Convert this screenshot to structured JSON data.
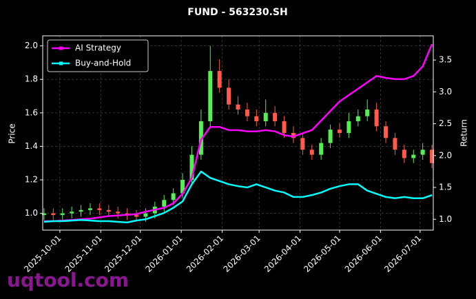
{
  "chart_data": {
    "type": "candlestick",
    "title": "FUND - 563230.SH",
    "ylabel": "Price",
    "y2label": "Return",
    "watermark": "uqtool.com",
    "x": [
      "2025-09-19",
      "2025-09-26",
      "2025-10-03",
      "2025-10-10",
      "2025-10-17",
      "2025-10-24",
      "2025-10-31",
      "2025-11-07",
      "2025-11-14",
      "2025-11-21",
      "2025-11-28",
      "2025-12-05",
      "2025-12-12",
      "2025-12-19",
      "2025-12-26",
      "2026-01-02",
      "2026-01-09",
      "2026-01-16",
      "2026-01-23",
      "2026-01-30",
      "2026-02-06",
      "2026-02-13",
      "2026-02-20",
      "2026-02-27",
      "2026-03-06",
      "2026-03-13",
      "2026-03-20",
      "2026-03-27",
      "2026-04-03",
      "2026-04-10",
      "2026-04-17",
      "2026-04-24",
      "2026-05-01",
      "2026-05-08",
      "2026-05-15",
      "2026-05-22",
      "2026-05-29",
      "2026-06-05",
      "2026-06-12",
      "2026-06-19",
      "2026-06-26",
      "2026-07-03",
      "2026-07-10"
    ],
    "ohlc": {
      "up_color": "#55ee55",
      "down_color": "#ff5a4a",
      "open": [
        0.99,
        1.0,
        0.99,
        1.0,
        1.01,
        1.02,
        1.03,
        1.02,
        1.01,
        1.0,
        0.99,
        0.98,
        1.0,
        1.04,
        1.08,
        1.12,
        1.2,
        1.35,
        1.55,
        1.85,
        1.75,
        1.65,
        1.62,
        1.58,
        1.55,
        1.6,
        1.55,
        1.48,
        1.45,
        1.38,
        1.35,
        1.42,
        1.5,
        1.48,
        1.55,
        1.58,
        1.62,
        1.52,
        1.45,
        1.38,
        1.33,
        1.35,
        1.38
      ],
      "high": [
        1.03,
        1.03,
        1.03,
        1.04,
        1.05,
        1.06,
        1.06,
        1.05,
        1.04,
        1.03,
        1.02,
        1.03,
        1.07,
        1.11,
        1.15,
        1.24,
        1.4,
        1.62,
        2.0,
        1.92,
        1.8,
        1.7,
        1.66,
        1.62,
        1.68,
        1.64,
        1.58,
        1.52,
        1.48,
        1.41,
        1.45,
        1.53,
        1.54,
        1.6,
        1.62,
        1.68,
        1.66,
        1.55,
        1.48,
        1.41,
        1.38,
        1.42,
        1.41
      ],
      "low": [
        0.96,
        0.96,
        0.96,
        0.97,
        0.98,
        0.99,
        0.99,
        0.98,
        0.97,
        0.96,
        0.95,
        0.95,
        0.97,
        1.01,
        1.05,
        1.09,
        1.17,
        1.32,
        1.52,
        1.72,
        1.62,
        1.59,
        1.55,
        1.52,
        1.52,
        1.52,
        1.45,
        1.42,
        1.35,
        1.32,
        1.32,
        1.39,
        1.45,
        1.45,
        1.52,
        1.55,
        1.49,
        1.42,
        1.35,
        1.3,
        1.3,
        1.32,
        1.27
      ],
      "close": [
        1.0,
        0.99,
        1.0,
        1.01,
        1.02,
        1.03,
        1.02,
        1.01,
        1.0,
        0.99,
        0.98,
        1.0,
        1.04,
        1.08,
        1.12,
        1.2,
        1.35,
        1.55,
        1.85,
        1.75,
        1.65,
        1.62,
        1.58,
        1.55,
        1.6,
        1.55,
        1.48,
        1.45,
        1.38,
        1.35,
        1.42,
        1.5,
        1.48,
        1.55,
        1.58,
        1.62,
        1.52,
        1.45,
        1.38,
        1.33,
        1.35,
        1.38,
        1.3
      ]
    },
    "series": [
      {
        "name": "AI Strategy",
        "color": "#ff00ff",
        "axis": "y2",
        "values": [
          0.97,
          0.97,
          0.98,
          0.99,
          1.0,
          1.01,
          1.03,
          1.05,
          1.06,
          1.07,
          1.08,
          1.12,
          1.15,
          1.18,
          1.25,
          1.4,
          1.65,
          2.25,
          2.45,
          2.45,
          2.4,
          2.4,
          2.38,
          2.38,
          2.4,
          2.38,
          2.32,
          2.3,
          2.35,
          2.4,
          2.55,
          2.7,
          2.85,
          2.95,
          3.05,
          3.15,
          3.25,
          3.22,
          3.2,
          3.2,
          3.25,
          3.4,
          3.75
        ]
      },
      {
        "name": "Buy-and-Hold",
        "color": "#00ffff",
        "axis": "y2",
        "values": [
          0.96,
          0.97,
          0.97,
          0.98,
          0.99,
          0.98,
          0.97,
          0.97,
          0.96,
          0.95,
          0.98,
          1.0,
          1.05,
          1.1,
          1.18,
          1.28,
          1.55,
          1.75,
          1.65,
          1.6,
          1.55,
          1.52,
          1.5,
          1.55,
          1.5,
          1.45,
          1.42,
          1.35,
          1.35,
          1.38,
          1.42,
          1.48,
          1.52,
          1.55,
          1.55,
          1.45,
          1.4,
          1.35,
          1.33,
          1.35,
          1.33,
          1.33,
          1.38
        ]
      }
    ],
    "xlim": [
      "2025-09-18",
      "2026-07-11"
    ],
    "xticks": [
      "2025-10-01",
      "2025-11-01",
      "2025-12-01",
      "2026-01-01",
      "2026-02-01",
      "2026-03-01",
      "2026-04-01",
      "2026-05-01",
      "2026-06-01",
      "2026-07-01"
    ],
    "ylim": [
      0.9,
      2.06
    ],
    "yticks": [
      {
        "value": 1.0,
        "label": "1.0"
      },
      1.2,
      1.4,
      1.6,
      1.8,
      {
        "value": 2.0,
        "label": "2.0"
      }
    ],
    "y2lim": [
      0.83,
      3.88
    ],
    "y2ticks": [
      {
        "value": 1.0,
        "label": "1.0"
      },
      1.5,
      {
        "value": 2.0,
        "label": "2.0"
      },
      2.5,
      {
        "value": 3.0,
        "label": "3.0"
      },
      3.5
    ],
    "grid": true,
    "legend": "upper left"
  }
}
